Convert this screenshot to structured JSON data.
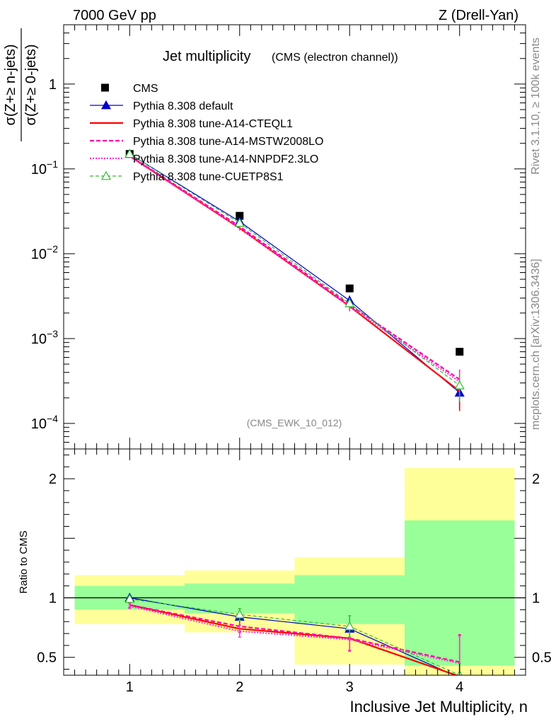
{
  "header": {
    "left": "7000 GeV pp",
    "right": "Z (Drell-Yan)"
  },
  "side": {
    "rivet": "Rivet 3.1.10, ≥ 100k events",
    "mcplots": "mcplots.cern.ch [arXiv:1306.3436]"
  },
  "colors": {
    "cms": "#000000",
    "default": "#0000cc",
    "cteql1": "#ff0000",
    "mstw": "#ff00aa",
    "nnpdf": "#ff33cc",
    "cuetp": "#33bb33",
    "band_inner": "#99ff99",
    "band_outer": "#ffff99"
  },
  "chart_data": [
    {
      "type": "line",
      "panel": "main",
      "title": "Jet multiplicity",
      "subtitle": "(CMS (electron channel))",
      "watermark": "(CMS_EWK_10_012)",
      "ylabel_num": "σ(Z+≥ n-jets)",
      "ylabel_den": "σ(Z+≥ 0-jets)",
      "yscale": "log",
      "ylim": [
        5e-05,
        5
      ],
      "xlim": [
        0.4,
        4.6
      ],
      "yticks": [
        {
          "v": 0.0001,
          "base": "10",
          "exp": "−4"
        },
        {
          "v": 0.001,
          "base": "10",
          "exp": "−3"
        },
        {
          "v": 0.01,
          "base": "10",
          "exp": "−2"
        },
        {
          "v": 0.1,
          "base": "10",
          "exp": "−1"
        },
        {
          "v": 1,
          "base": "1",
          "exp": ""
        }
      ],
      "legend_position": "top-left",
      "x": [
        1,
        2,
        3,
        4
      ],
      "series": [
        {
          "name": "CMS",
          "key": "cms",
          "style": "marker",
          "values": [
            0.15,
            0.028,
            0.0039,
            0.0007
          ]
        },
        {
          "name": "Pythia 8.308 default",
          "key": "default",
          "style": "solid-tri",
          "values": [
            0.15,
            0.024,
            0.0028,
            0.00023
          ],
          "err": [
            0,
            0.0015,
            0.0004,
            8e-05
          ]
        },
        {
          "name": "Pythia 8.308 tune-A14-CTEQL1",
          "key": "cteql1",
          "style": "solid-thick",
          "values": [
            0.142,
            0.02,
            0.0024,
            0.00024
          ],
          "err": [
            0,
            0.0012,
            0.0003,
            0.0001
          ]
        },
        {
          "name": "Pythia 8.308 tune-A14-MSTW2008LO",
          "key": "mstw",
          "style": "dashed",
          "values": [
            0.143,
            0.021,
            0.0025,
            0.00033
          ],
          "err": [
            0,
            0.0013,
            0.0003,
            0.0001
          ]
        },
        {
          "name": "Pythia 8.308 tune-A14-NNPDF2.3LO",
          "key": "nnpdf",
          "style": "dotted",
          "values": [
            0.14,
            0.02,
            0.0024,
            0.00031
          ],
          "err": [
            0,
            0.0013,
            0.0003,
            0.0001
          ]
        },
        {
          "name": "Pythia 8.308 tune-CUETP8S1",
          "key": "cuetp",
          "style": "dashed-tri",
          "values": [
            0.15,
            0.023,
            0.0026,
            0.00028
          ],
          "err": [
            0,
            0.0015,
            0.0004,
            0.0001
          ]
        }
      ]
    },
    {
      "type": "line",
      "panel": "ratio",
      "ylabel": "Ratio to CMS",
      "xlabel": "Inclusive Jet Multiplicity, n",
      "ylim": [
        0.35,
        2.25
      ],
      "xlim": [
        0.4,
        4.6
      ],
      "xticks": [
        "1",
        "2",
        "3",
        "4"
      ],
      "yticks": [
        {
          "v": 0.5,
          "label": "0.5"
        },
        {
          "v": 1,
          "label": "1"
        },
        {
          "v": 2,
          "label": "2"
        }
      ],
      "bands": [
        {
          "x0": 0.5,
          "x1": 1.5,
          "inner": [
            0.9,
            1.1
          ],
          "outer": [
            0.78,
            1.19
          ]
        },
        {
          "x0": 1.5,
          "x1": 2.5,
          "inner": [
            0.87,
            1.12
          ],
          "outer": [
            0.71,
            1.23
          ]
        },
        {
          "x0": 2.5,
          "x1": 3.5,
          "inner": [
            0.78,
            1.19
          ],
          "outer": [
            0.44,
            1.34
          ]
        },
        {
          "x0": 3.5,
          "x1": 4.5,
          "inner": [
            0.43,
            1.65
          ],
          "outer": [
            0.35,
            2.09
          ]
        }
      ],
      "x": [
        1,
        2,
        3,
        4
      ],
      "series": [
        {
          "name": "Pythia 8.308 default",
          "key": "default",
          "style": "solid-tri",
          "values": [
            1.0,
            0.84,
            0.74,
            0.33
          ]
        },
        {
          "name": "Pythia 8.308 tune-A14-CTEQL1",
          "key": "cteql1",
          "style": "solid-thick",
          "values": [
            0.94,
            0.74,
            0.66,
            0.34
          ]
        },
        {
          "name": "Pythia 8.308 tune-A14-MSTW2008LO",
          "key": "mstw",
          "style": "dashed",
          "values": [
            0.94,
            0.76,
            0.66,
            0.46
          ],
          "err": [
            0.02,
            0.05,
            0.1,
            0.23
          ]
        },
        {
          "name": "Pythia 8.308 tune-A14-NNPDF2.3LO",
          "key": "nnpdf",
          "style": "dotted",
          "values": [
            0.93,
            0.72,
            0.65,
            0.45
          ],
          "err": [
            0.02,
            0.05,
            0.1,
            0.23
          ]
        },
        {
          "name": "Pythia 8.308 tune-CUETP8S1",
          "key": "cuetp",
          "style": "dashed-tri",
          "values": [
            0.99,
            0.86,
            0.76,
            0.35
          ],
          "err": [
            0.02,
            0.05,
            0.09,
            0.1
          ]
        }
      ]
    }
  ]
}
